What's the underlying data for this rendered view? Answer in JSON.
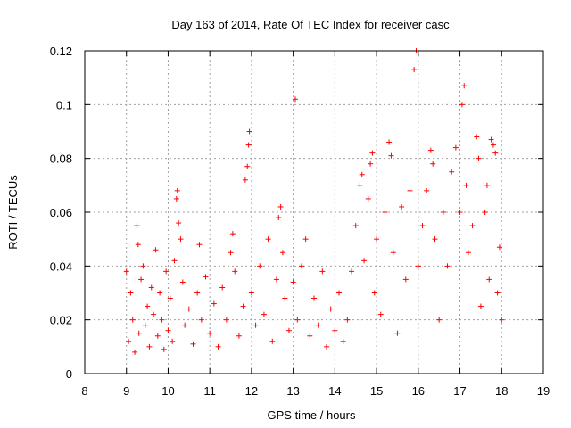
{
  "chart_data": {
    "type": "scatter",
    "title": "Day 163 of 2014, Rate Of TEC Index for receiver casc",
    "xlabel": "GPS time / hours",
    "ylabel": "ROTI / TECUs",
    "xlim": [
      8,
      19
    ],
    "ylim": [
      0,
      0.12
    ],
    "x_ticks": [
      8,
      9,
      10,
      11,
      12,
      13,
      14,
      15,
      16,
      17,
      18,
      19
    ],
    "x_tick_labels": [
      "8",
      "9",
      "10",
      "11",
      "12",
      "13",
      "14",
      "15",
      "16",
      "17",
      "18",
      "19"
    ],
    "y_ticks": [
      0,
      0.02,
      0.04,
      0.06,
      0.08,
      0.1,
      0.12
    ],
    "y_tick_labels": [
      "0",
      "0.02",
      "0.04",
      "0.06",
      "0.08",
      "0.1",
      "0.12"
    ],
    "grid": true,
    "marker": "+",
    "series": [
      {
        "name": "ROTI",
        "color": "#ff0000",
        "points": [
          [
            9.0,
            0.038
          ],
          [
            9.05,
            0.012
          ],
          [
            9.1,
            0.03
          ],
          [
            9.15,
            0.02
          ],
          [
            9.2,
            0.008
          ],
          [
            9.25,
            0.055
          ],
          [
            9.28,
            0.048
          ],
          [
            9.3,
            0.015
          ],
          [
            9.35,
            0.035
          ],
          [
            9.4,
            0.04
          ],
          [
            9.45,
            0.018
          ],
          [
            9.5,
            0.025
          ],
          [
            9.55,
            0.01
          ],
          [
            9.6,
            0.032
          ],
          [
            9.65,
            0.022
          ],
          [
            9.7,
            0.046
          ],
          [
            9.75,
            0.014
          ],
          [
            9.8,
            0.03
          ],
          [
            9.85,
            0.02
          ],
          [
            9.9,
            0.009
          ],
          [
            9.95,
            0.038
          ],
          [
            10.0,
            0.016
          ],
          [
            10.05,
            0.028
          ],
          [
            10.1,
            0.012
          ],
          [
            10.15,
            0.042
          ],
          [
            10.2,
            0.065
          ],
          [
            10.22,
            0.068
          ],
          [
            10.25,
            0.056
          ],
          [
            10.3,
            0.05
          ],
          [
            10.35,
            0.034
          ],
          [
            10.4,
            0.018
          ],
          [
            10.5,
            0.024
          ],
          [
            10.6,
            0.011
          ],
          [
            10.7,
            0.03
          ],
          [
            10.75,
            0.048
          ],
          [
            10.8,
            0.02
          ],
          [
            10.9,
            0.036
          ],
          [
            11.0,
            0.015
          ],
          [
            11.1,
            0.026
          ],
          [
            11.2,
            0.01
          ],
          [
            11.3,
            0.032
          ],
          [
            11.4,
            0.02
          ],
          [
            11.5,
            0.045
          ],
          [
            11.55,
            0.052
          ],
          [
            11.6,
            0.038
          ],
          [
            11.7,
            0.014
          ],
          [
            11.8,
            0.025
          ],
          [
            11.85,
            0.072
          ],
          [
            11.9,
            0.077
          ],
          [
            11.93,
            0.085
          ],
          [
            11.95,
            0.09
          ],
          [
            12.0,
            0.03
          ],
          [
            12.1,
            0.018
          ],
          [
            12.2,
            0.04
          ],
          [
            12.3,
            0.022
          ],
          [
            12.4,
            0.05
          ],
          [
            12.5,
            0.012
          ],
          [
            12.6,
            0.035
          ],
          [
            12.65,
            0.058
          ],
          [
            12.7,
            0.062
          ],
          [
            12.75,
            0.045
          ],
          [
            12.8,
            0.028
          ],
          [
            12.9,
            0.016
          ],
          [
            13.0,
            0.034
          ],
          [
            13.05,
            0.102
          ],
          [
            13.1,
            0.02
          ],
          [
            13.2,
            0.04
          ],
          [
            13.3,
            0.05
          ],
          [
            13.4,
            0.014
          ],
          [
            13.5,
            0.028
          ],
          [
            13.6,
            0.018
          ],
          [
            13.7,
            0.038
          ],
          [
            13.8,
            0.01
          ],
          [
            13.9,
            0.024
          ],
          [
            14.0,
            0.016
          ],
          [
            14.1,
            0.03
          ],
          [
            14.2,
            0.012
          ],
          [
            14.3,
            0.02
          ],
          [
            14.4,
            0.038
          ],
          [
            14.5,
            0.055
          ],
          [
            14.6,
            0.07
          ],
          [
            14.65,
            0.074
          ],
          [
            14.7,
            0.042
          ],
          [
            14.8,
            0.065
          ],
          [
            14.85,
            0.078
          ],
          [
            14.9,
            0.082
          ],
          [
            14.95,
            0.03
          ],
          [
            15.0,
            0.05
          ],
          [
            15.1,
            0.022
          ],
          [
            15.2,
            0.06
          ],
          [
            15.3,
            0.086
          ],
          [
            15.35,
            0.081
          ],
          [
            15.4,
            0.045
          ],
          [
            15.5,
            0.015
          ],
          [
            15.6,
            0.062
          ],
          [
            15.7,
            0.035
          ],
          [
            15.8,
            0.068
          ],
          [
            15.9,
            0.113
          ],
          [
            15.95,
            0.12
          ],
          [
            16.0,
            0.04
          ],
          [
            16.1,
            0.055
          ],
          [
            16.2,
            0.068
          ],
          [
            16.3,
            0.083
          ],
          [
            16.35,
            0.078
          ],
          [
            16.4,
            0.05
          ],
          [
            16.5,
            0.02
          ],
          [
            16.6,
            0.06
          ],
          [
            16.7,
            0.04
          ],
          [
            16.8,
            0.075
          ],
          [
            16.9,
            0.084
          ],
          [
            17.0,
            0.06
          ],
          [
            17.05,
            0.1
          ],
          [
            17.1,
            0.107
          ],
          [
            17.15,
            0.07
          ],
          [
            17.2,
            0.045
          ],
          [
            17.3,
            0.055
          ],
          [
            17.4,
            0.088
          ],
          [
            17.45,
            0.08
          ],
          [
            17.5,
            0.025
          ],
          [
            17.6,
            0.06
          ],
          [
            17.65,
            0.07
          ],
          [
            17.7,
            0.035
          ],
          [
            17.75,
            0.087
          ],
          [
            17.8,
            0.085
          ],
          [
            17.85,
            0.082
          ],
          [
            17.9,
            0.03
          ],
          [
            17.95,
            0.047
          ],
          [
            18.0,
            0.02
          ]
        ]
      }
    ]
  }
}
